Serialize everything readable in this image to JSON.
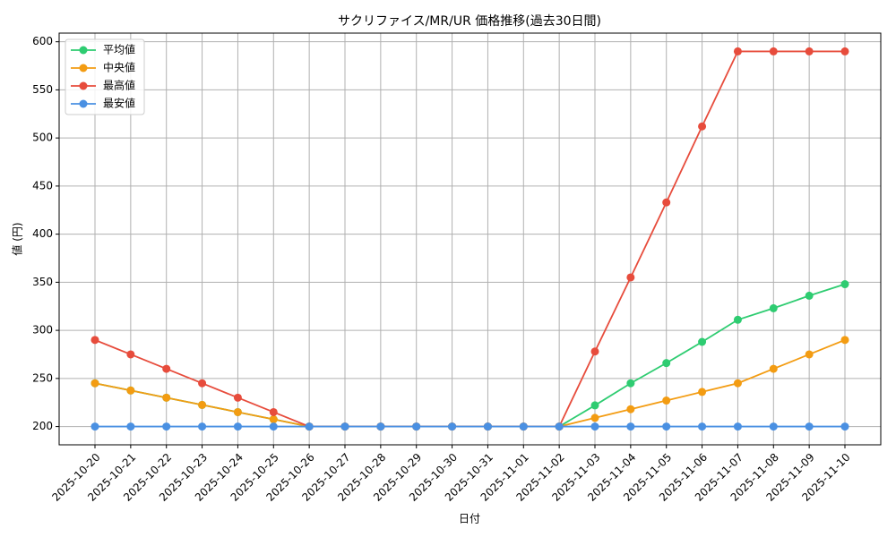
{
  "chart_data": {
    "type": "line",
    "title": "サクリファイス/MR/UR 価格推移(過去30日間)",
    "x_label": "日付",
    "y_label": "値 (円)",
    "categories": [
      "2025-10-20",
      "2025-10-21",
      "2025-10-22",
      "2025-10-23",
      "2025-10-24",
      "2025-10-25",
      "2025-10-26",
      "2025-10-27",
      "2025-10-28",
      "2025-10-29",
      "2025-10-30",
      "2025-10-31",
      "2025-11-01",
      "2025-11-02",
      "2025-11-03",
      "2025-11-04",
      "2025-11-05",
      "2025-11-06",
      "2025-11-07",
      "2025-11-08",
      "2025-11-09",
      "2025-11-10"
    ],
    "series": [
      {
        "name": "平均値",
        "color": "#2ecc71",
        "values": [
          245,
          237.5,
          230,
          222.5,
          215,
          207.5,
          200,
          200,
          200,
          200,
          200,
          200,
          200,
          200,
          222,
          245,
          266,
          288,
          311,
          323,
          336,
          348
        ]
      },
      {
        "name": "中央値",
        "color": "#f39c12",
        "values": [
          245,
          237.5,
          230,
          222.5,
          215,
          207.5,
          200,
          200,
          200,
          200,
          200,
          200,
          200,
          200,
          209,
          218,
          227,
          236,
          245,
          260,
          275,
          290
        ]
      },
      {
        "name": "最高値",
        "color": "#e74c3c",
        "values": [
          290,
          275,
          260,
          245,
          230,
          215,
          200,
          200,
          200,
          200,
          200,
          200,
          200,
          200,
          278,
          355,
          433,
          512,
          590,
          590,
          590,
          590
        ]
      },
      {
        "name": "最安値",
        "color": "#4a90e2",
        "values": [
          200,
          200,
          200,
          200,
          200,
          200,
          200,
          200,
          200,
          200,
          200,
          200,
          200,
          200,
          200,
          200,
          200,
          200,
          200,
          200,
          200,
          200
        ]
      }
    ],
    "ylim": [
      181,
      609
    ],
    "yticks": [
      200,
      250,
      300,
      350,
      400,
      450,
      500,
      550,
      600
    ],
    "grid": true,
    "legend": "upper-left"
  }
}
